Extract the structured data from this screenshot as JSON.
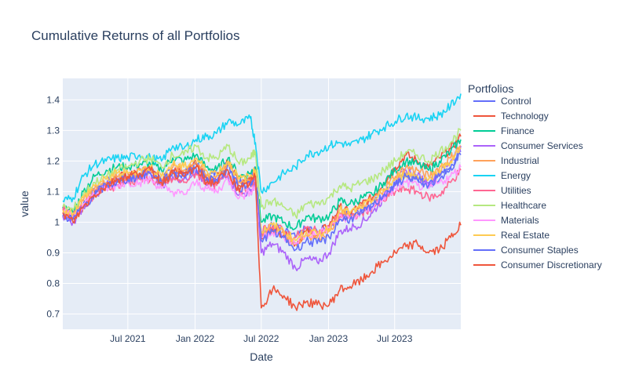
{
  "chart_data": {
    "type": "line",
    "title": "Cumulative Returns of all Portfolios",
    "xlabel": "Date",
    "ylabel": "value",
    "x_range": [
      "2021-01-04",
      "2023-12-29"
    ],
    "ylim": [
      0.65,
      1.47
    ],
    "x_ticks": [
      "Jul 2021",
      "Jan 2022",
      "Jul 2022",
      "Jan 2023",
      "Jul 2023"
    ],
    "x_tick_dates": [
      "2021-07-01",
      "2022-01-01",
      "2022-07-01",
      "2023-01-01",
      "2023-07-01"
    ],
    "y_ticks": [
      "0.7",
      "0.8",
      "0.9",
      "1",
      "1.1",
      "1.2",
      "1.3",
      "1.4"
    ],
    "grid": true,
    "legend_title": "Portfolios",
    "legend_position": "right",
    "x": [
      "2021-01-04",
      "2021-02-01",
      "2021-03-01",
      "2021-04-01",
      "2021-05-03",
      "2021-06-01",
      "2021-07-01",
      "2021-08-02",
      "2021-09-01",
      "2021-10-01",
      "2021-11-01",
      "2021-12-01",
      "2022-01-03",
      "2022-02-01",
      "2022-03-01",
      "2022-04-01",
      "2022-05-02",
      "2022-06-01",
      "2022-06-15",
      "2022-07-01",
      "2022-08-01",
      "2022-09-01",
      "2022-10-03",
      "2022-11-01",
      "2022-12-01",
      "2023-01-03",
      "2023-02-01",
      "2023-03-01",
      "2023-04-03",
      "2023-05-01",
      "2023-06-01",
      "2023-07-03",
      "2023-08-01",
      "2023-09-01",
      "2023-10-02",
      "2023-11-01",
      "2023-12-01",
      "2023-12-29"
    ],
    "series": [
      {
        "name": "Control",
        "color": "#636efa",
        "values": [
          1.03,
          1.01,
          1.06,
          1.1,
          1.13,
          1.14,
          1.15,
          1.16,
          1.17,
          1.14,
          1.17,
          1.16,
          1.19,
          1.15,
          1.16,
          1.19,
          1.13,
          1.15,
          1.17,
          0.97,
          0.99,
          0.97,
          0.95,
          0.98,
          0.97,
          0.98,
          1.03,
          1.02,
          1.04,
          1.06,
          1.09,
          1.13,
          1.15,
          1.14,
          1.12,
          1.14,
          1.18,
          1.23
        ]
      },
      {
        "name": "Technology",
        "color": "#ef553b",
        "values": [
          1.04,
          1.02,
          1.05,
          1.1,
          1.12,
          1.14,
          1.16,
          1.17,
          1.18,
          1.14,
          1.17,
          1.16,
          1.2,
          1.14,
          1.15,
          1.2,
          1.12,
          1.14,
          1.16,
          0.95,
          0.98,
          0.96,
          0.93,
          0.97,
          0.96,
          0.99,
          1.05,
          1.03,
          1.06,
          1.08,
          1.13,
          1.18,
          1.22,
          1.2,
          1.18,
          1.21,
          1.24,
          1.28
        ]
      },
      {
        "name": "Finance",
        "color": "#00cc96",
        "values": [
          1.05,
          1.03,
          1.1,
          1.15,
          1.17,
          1.18,
          1.18,
          1.19,
          1.19,
          1.17,
          1.21,
          1.2,
          1.22,
          1.18,
          1.17,
          1.21,
          1.15,
          1.16,
          1.18,
          1.0,
          1.02,
          1.0,
          0.98,
          1.02,
          1.01,
          1.02,
          1.07,
          1.06,
          1.08,
          1.09,
          1.13,
          1.17,
          1.2,
          1.19,
          1.17,
          1.2,
          1.23,
          1.27
        ]
      },
      {
        "name": "Consumer Services",
        "color": "#ab63fa",
        "values": [
          1.02,
          1.0,
          1.05,
          1.09,
          1.12,
          1.13,
          1.14,
          1.15,
          1.16,
          1.12,
          1.15,
          1.14,
          1.17,
          1.12,
          1.13,
          1.15,
          1.09,
          1.1,
          1.12,
          0.9,
          0.93,
          0.9,
          0.85,
          0.88,
          0.87,
          0.9,
          0.97,
          0.98,
          1.0,
          1.03,
          1.08,
          1.13,
          1.17,
          1.15,
          1.13,
          1.16,
          1.2,
          1.25
        ]
      },
      {
        "name": "Industrial",
        "color": "#ffa15a",
        "values": [
          1.03,
          1.02,
          1.07,
          1.11,
          1.13,
          1.15,
          1.15,
          1.16,
          1.17,
          1.14,
          1.18,
          1.17,
          1.2,
          1.15,
          1.15,
          1.19,
          1.13,
          1.14,
          1.16,
          0.96,
          0.98,
          0.96,
          0.93,
          0.96,
          0.95,
          0.97,
          1.03,
          1.02,
          1.05,
          1.07,
          1.11,
          1.15,
          1.18,
          1.17,
          1.15,
          1.18,
          1.21,
          1.25
        ]
      },
      {
        "name": "Energy",
        "color": "#19d3f3",
        "values": [
          1.07,
          1.08,
          1.15,
          1.19,
          1.2,
          1.21,
          1.21,
          1.22,
          1.21,
          1.2,
          1.25,
          1.24,
          1.27,
          1.28,
          1.29,
          1.33,
          1.32,
          1.34,
          1.26,
          1.1,
          1.13,
          1.16,
          1.18,
          1.22,
          1.23,
          1.25,
          1.26,
          1.25,
          1.27,
          1.29,
          1.31,
          1.33,
          1.35,
          1.34,
          1.34,
          1.35,
          1.38,
          1.42
        ]
      },
      {
        "name": "Utilities",
        "color": "#ff6692",
        "values": [
          1.04,
          1.02,
          1.06,
          1.09,
          1.11,
          1.12,
          1.13,
          1.14,
          1.14,
          1.12,
          1.14,
          1.13,
          1.16,
          1.13,
          1.12,
          1.16,
          1.1,
          1.12,
          1.14,
          0.97,
          0.99,
          0.97,
          0.95,
          0.98,
          0.97,
          0.98,
          1.02,
          1.01,
          1.03,
          1.05,
          1.07,
          1.1,
          1.11,
          1.1,
          1.08,
          1.09,
          1.13,
          1.17
        ]
      },
      {
        "name": "Healthcare",
        "color": "#b6e880",
        "values": [
          1.05,
          1.04,
          1.09,
          1.13,
          1.15,
          1.17,
          1.18,
          1.2,
          1.21,
          1.18,
          1.22,
          1.22,
          1.25,
          1.21,
          1.21,
          1.25,
          1.19,
          1.21,
          1.23,
          1.05,
          1.07,
          1.05,
          1.02,
          1.06,
          1.06,
          1.08,
          1.12,
          1.11,
          1.13,
          1.14,
          1.17,
          1.2,
          1.23,
          1.22,
          1.2,
          1.23,
          1.26,
          1.3
        ]
      },
      {
        "name": "Materials",
        "color": "#ff97ff",
        "values": [
          1.03,
          1.02,
          1.06,
          1.09,
          1.11,
          1.12,
          1.13,
          1.13,
          1.14,
          1.11,
          1.1,
          1.09,
          1.13,
          1.11,
          1.1,
          1.14,
          1.08,
          1.1,
          1.12,
          0.95,
          0.97,
          0.95,
          0.93,
          0.96,
          0.96,
          0.98,
          1.02,
          1.01,
          1.03,
          1.05,
          1.08,
          1.11,
          1.13,
          1.12,
          1.11,
          1.13,
          1.15,
          1.18
        ]
      },
      {
        "name": "Real Estate",
        "color": "#fecb52",
        "values": [
          1.04,
          1.03,
          1.08,
          1.12,
          1.14,
          1.16,
          1.16,
          1.17,
          1.18,
          1.15,
          1.19,
          1.18,
          1.21,
          1.17,
          1.16,
          1.2,
          1.14,
          1.15,
          1.17,
          0.97,
          0.99,
          0.97,
          0.94,
          0.97,
          0.96,
          0.98,
          1.04,
          1.03,
          1.05,
          1.07,
          1.1,
          1.14,
          1.16,
          1.15,
          1.14,
          1.17,
          1.2,
          1.24
        ]
      },
      {
        "name": "Consumer Staples",
        "color": "#636efa",
        "values": [
          1.02,
          1.01,
          1.05,
          1.09,
          1.12,
          1.13,
          1.14,
          1.15,
          1.16,
          1.13,
          1.16,
          1.15,
          1.18,
          1.14,
          1.14,
          1.17,
          1.11,
          1.13,
          1.15,
          0.94,
          0.97,
          0.95,
          0.91,
          0.94,
          0.93,
          0.95,
          1.01,
          1.01,
          1.03,
          1.05,
          1.09,
          1.12,
          1.15,
          1.14,
          1.12,
          1.15,
          1.18,
          1.22
        ]
      },
      {
        "name": "Consumer Discretionary",
        "color": "#ef553b",
        "values": [
          1.03,
          1.0,
          1.05,
          1.09,
          1.12,
          1.14,
          1.15,
          1.16,
          1.17,
          1.13,
          1.16,
          1.15,
          1.18,
          1.13,
          1.13,
          1.17,
          1.1,
          1.13,
          1.15,
          0.72,
          0.78,
          0.76,
          0.72,
          0.74,
          0.73,
          0.73,
          0.78,
          0.79,
          0.81,
          0.84,
          0.87,
          0.9,
          0.92,
          0.93,
          0.9,
          0.91,
          0.95,
          0.99
        ]
      }
    ]
  }
}
